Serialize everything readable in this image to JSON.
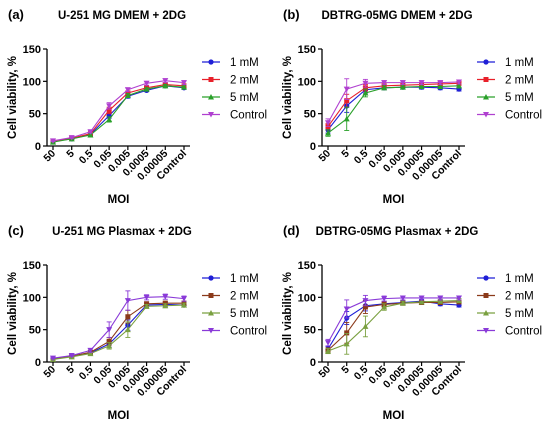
{
  "chart_data": [
    {
      "type": "line",
      "panel_label": "(a)",
      "title": "U-251 MG DMEM + 2DG",
      "xlabel": "MOI",
      "ylabel": "Cell viability, %",
      "categories": [
        "50",
        "5",
        "0.5",
        "0.05",
        "0.005",
        "0.0005",
        "0.00005",
        "Control"
      ],
      "ylim": [
        0,
        150
      ],
      "yticks": [
        0,
        50,
        100,
        150
      ],
      "legend_position": "right",
      "series": [
        {
          "name": "1 mM",
          "color": "#1f1fd6",
          "marker": "circle",
          "values": [
            7,
            11,
            18,
            47,
            77,
            86,
            93,
            90
          ],
          "errors": [
            1,
            1,
            2,
            4,
            3,
            2,
            2,
            2
          ]
        },
        {
          "name": "2 mM",
          "color": "#e8202a",
          "marker": "square",
          "values": [
            7,
            12,
            19,
            55,
            82,
            90,
            95,
            93
          ],
          "errors": [
            1,
            1,
            2,
            5,
            3,
            2,
            2,
            2
          ]
        },
        {
          "name": "5 mM",
          "color": "#2aa02a",
          "marker": "triangle",
          "values": [
            6,
            11,
            17,
            41,
            78,
            88,
            93,
            91
          ],
          "errors": [
            1,
            1,
            2,
            4,
            3,
            2,
            2,
            2
          ]
        },
        {
          "name": "Control",
          "color": "#b040d0",
          "marker": "triangle-down",
          "values": [
            8,
            13,
            22,
            62,
            87,
            97,
            101,
            98
          ],
          "errors": [
            1,
            1,
            2,
            5,
            3,
            3,
            3,
            3
          ]
        }
      ]
    },
    {
      "type": "line",
      "panel_label": "(b)",
      "title": "DBTRG-05MG DMEM + 2DG",
      "xlabel": "MOI",
      "ylabel": "Cell viability, %",
      "categories": [
        "50",
        "5",
        "0.5",
        "0.05",
        "0.005",
        "0.0005",
        "0.00005",
        "Control"
      ],
      "ylim": [
        0,
        150
      ],
      "yticks": [
        0,
        50,
        100,
        150
      ],
      "legend_position": "right",
      "series": [
        {
          "name": "1 mM",
          "color": "#1f1fd6",
          "marker": "circle",
          "values": [
            25,
            62,
            87,
            90,
            91,
            91,
            90,
            88
          ],
          "errors": [
            5,
            10,
            5,
            3,
            3,
            3,
            3,
            3
          ]
        },
        {
          "name": "2 mM",
          "color": "#e8202a",
          "marker": "square",
          "values": [
            30,
            70,
            90,
            93,
            94,
            95,
            96,
            97
          ],
          "errors": [
            5,
            10,
            5,
            3,
            3,
            3,
            3,
            3
          ]
        },
        {
          "name": "5 mM",
          "color": "#2aa02a",
          "marker": "triangle",
          "values": [
            20,
            42,
            82,
            90,
            91,
            92,
            92,
            93
          ],
          "errors": [
            5,
            18,
            6,
            3,
            3,
            3,
            3,
            3
          ]
        },
        {
          "name": "Control",
          "color": "#b040d0",
          "marker": "triangle-down",
          "values": [
            36,
            88,
            97,
            98,
            98,
            98,
            98,
            99
          ],
          "errors": [
            6,
            16,
            6,
            3,
            3,
            3,
            3,
            3
          ]
        }
      ]
    },
    {
      "type": "line",
      "panel_label": "(c)",
      "title": "U-251 MG Plasmax + 2DG",
      "xlabel": "MOI",
      "ylabel": "Cell viability, %",
      "categories": [
        "50",
        "5",
        "0.5",
        "0.05",
        "0.005",
        "0.0005",
        "0.00005",
        "Control"
      ],
      "ylim": [
        0,
        150
      ],
      "yticks": [
        0,
        50,
        100,
        150
      ],
      "legend_position": "right",
      "series": [
        {
          "name": "1 mM",
          "color": "#1f1fd6",
          "marker": "circle",
          "values": [
            5,
            9,
            14,
            28,
            57,
            88,
            89,
            88
          ],
          "errors": [
            1,
            1,
            2,
            5,
            8,
            3,
            3,
            3
          ]
        },
        {
          "name": "2 mM",
          "color": "#8b3a1a",
          "marker": "square",
          "values": [
            5,
            9,
            15,
            32,
            70,
            90,
            91,
            91
          ],
          "errors": [
            1,
            1,
            2,
            6,
            10,
            3,
            3,
            3
          ]
        },
        {
          "name": "5 mM",
          "color": "#7aa040",
          "marker": "triangle",
          "values": [
            4,
            8,
            13,
            25,
            50,
            86,
            87,
            88
          ],
          "errors": [
            1,
            1,
            2,
            5,
            12,
            3,
            3,
            3
          ]
        },
        {
          "name": "Control",
          "color": "#8a3ad8",
          "marker": "triangle-down",
          "values": [
            6,
            10,
            18,
            50,
            95,
            100,
            101,
            98
          ],
          "errors": [
            1,
            1,
            3,
            12,
            15,
            4,
            4,
            4
          ]
        }
      ]
    },
    {
      "type": "line",
      "panel_label": "(d)",
      "title": "DBTRG-05MG Plasmax + 2DG",
      "xlabel": "MOI",
      "ylabel": "Cell viability, %",
      "categories": [
        "50",
        "5",
        "0.5",
        "0.05",
        "0.005",
        "0.0005",
        "0.00005",
        "Control"
      ],
      "ylim": [
        0,
        150
      ],
      "yticks": [
        0,
        50,
        100,
        150
      ],
      "legend_position": "right",
      "series": [
        {
          "name": "1 mM",
          "color": "#1f1fd6",
          "marker": "circle",
          "values": [
            20,
            68,
            87,
            90,
            92,
            94,
            90,
            88
          ],
          "errors": [
            4,
            10,
            8,
            4,
            3,
            3,
            3,
            3
          ]
        },
        {
          "name": "2 mM",
          "color": "#8b3a1a",
          "marker": "square",
          "values": [
            18,
            45,
            85,
            89,
            91,
            92,
            92,
            93
          ],
          "errors": [
            4,
            16,
            10,
            4,
            3,
            3,
            3,
            3
          ]
        },
        {
          "name": "5 mM",
          "color": "#7aa040",
          "marker": "triangle",
          "values": [
            17,
            28,
            55,
            85,
            91,
            93,
            94,
            95
          ],
          "errors": [
            4,
            16,
            16,
            5,
            3,
            3,
            3,
            3
          ]
        },
        {
          "name": "Control",
          "color": "#8a3ad8",
          "marker": "triangle-down",
          "values": [
            30,
            82,
            95,
            98,
            99,
            99,
            99,
            99
          ],
          "errors": [
            5,
            14,
            8,
            4,
            3,
            3,
            3,
            3
          ]
        }
      ]
    }
  ]
}
